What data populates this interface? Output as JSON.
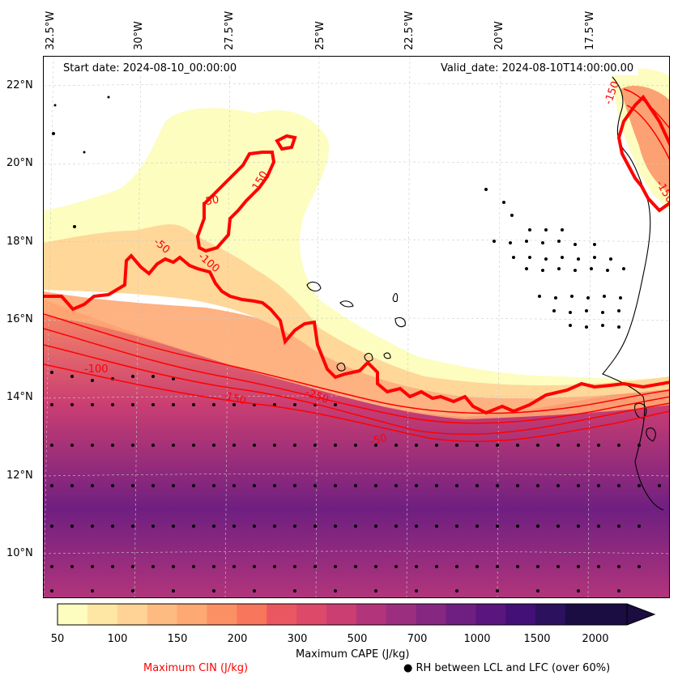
{
  "header": {
    "start_date": "Start date: 2024-08-10_00:00:00",
    "valid_date": "Valid_date: 2024-08-10T14:00:00.00"
  },
  "axes": {
    "longitude_labels": [
      "32.5°W",
      "30°W",
      "27.5°W",
      "25°W",
      "22.5°W",
      "20°W",
      "17.5°W"
    ],
    "latitude_labels": [
      "22°N",
      "20°N",
      "18°N",
      "16°N",
      "14°N",
      "12°N",
      "10°N"
    ]
  },
  "colorbar": {
    "title": "Maximum CAPE (J/kg)",
    "ticks": [
      "50",
      "100",
      "150",
      "200",
      "300",
      "500",
      "700",
      "1000",
      "1500",
      "2000"
    ],
    "colors": [
      "#fcfdbf",
      "#fee7a5",
      "#fed395",
      "#febb81",
      "#fea873",
      "#fc9065",
      "#f8765c",
      "#eb5760",
      "#dd4a69",
      "#ca3e72",
      "#b2357b",
      "#9c2e7f",
      "#862781",
      "#6f1f81",
      "#5a167e",
      "#421076",
      "#2b115e",
      "#1b0c41"
    ]
  },
  "legend": {
    "cin_label": "Maximum CIN (J/kg)",
    "rh_label": "● RH between LCL and LFC (over 60%)",
    "cin_color": "#ff0000"
  },
  "contour_labels": [
    "-50",
    "-100",
    "-150",
    "-250",
    "-50",
    "-50",
    "-150",
    "-100",
    "-150",
    "-150"
  ]
}
